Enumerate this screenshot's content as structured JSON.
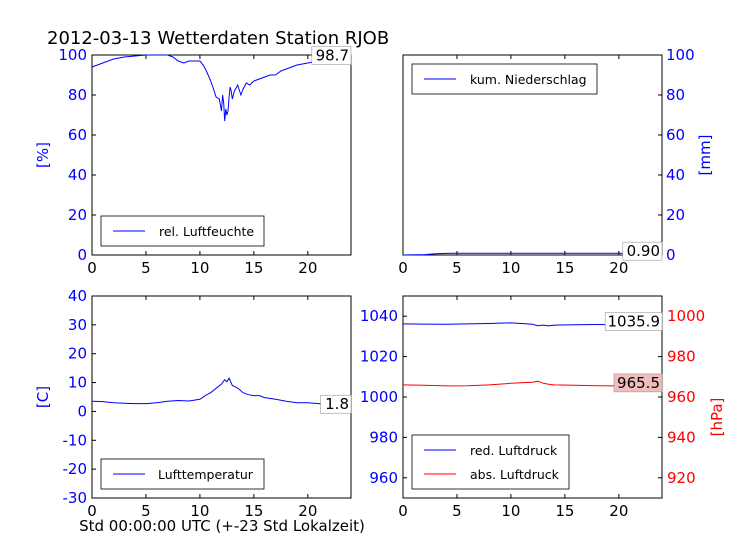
{
  "title": "2012-03-13 Wetterdaten Station RJOB",
  "xlabel": "Std 00:00:00 UTC (+-23 Std Lokalzeit)",
  "colors": {
    "blue": "#0000ff",
    "red": "#ff0000",
    "box_red": "#f2bcbc"
  },
  "chart_data": [
    {
      "type": "line",
      "panel": "humidity",
      "ylabel": "[%]",
      "ylim": [
        0,
        100
      ],
      "yticks": [
        0,
        20,
        40,
        60,
        80,
        100
      ],
      "xlim": [
        0,
        24
      ],
      "xticks": [
        0,
        5,
        10,
        15,
        20
      ],
      "legend": "rel. Luftfeuchte",
      "legend_position": "lower-left",
      "last_value_label": "98.7",
      "series": [
        {
          "name": "rel. Luftfeuchte",
          "color": "#0000ff",
          "x": [
            0,
            0.5,
            1,
            2,
            3,
            4,
            5,
            6,
            7,
            7.5,
            8,
            8.5,
            9,
            10,
            10.3,
            10.6,
            11,
            11.2,
            11.5,
            11.8,
            12,
            12.1,
            12.2,
            12.3,
            12.4,
            12.5,
            12.6,
            12.7,
            12.8,
            12.9,
            13,
            13.2,
            13.5,
            13.8,
            14,
            14.3,
            14.6,
            15,
            15.5,
            16,
            16.5,
            17,
            17.5,
            18,
            19,
            20,
            21,
            22,
            23,
            24
          ],
          "y": [
            94,
            95,
            96,
            98,
            99,
            99.5,
            100,
            100,
            100,
            99,
            97,
            96,
            97,
            97,
            95,
            92,
            87,
            84,
            79,
            78,
            72,
            80,
            76,
            67,
            73,
            70,
            72,
            79,
            84,
            82,
            78,
            82,
            85,
            80,
            83,
            86,
            85,
            87,
            88,
            89,
            90,
            90,
            92,
            93,
            95,
            96,
            97,
            98,
            98.5,
            98.7
          ]
        }
      ]
    },
    {
      "type": "line",
      "panel": "precipitation",
      "ylabel": "[mm]",
      "ylim": [
        0,
        100
      ],
      "yticks": [
        0,
        20,
        40,
        60,
        80,
        100
      ],
      "y_axis_side": "right",
      "xlim": [
        0,
        24
      ],
      "xticks": [
        0,
        5,
        10,
        15,
        20
      ],
      "legend": "kum. Niederschlag",
      "legend_position": "top-left",
      "last_value_label": "0.90",
      "series": [
        {
          "name": "kum. Niederschlag",
          "color": "#0000ff",
          "x": [
            0,
            2,
            3,
            4,
            5,
            8,
            12,
            16,
            20,
            24
          ],
          "y": [
            0,
            0.2,
            0.6,
            0.8,
            0.9,
            0.9,
            0.9,
            0.9,
            0.9,
            0.9
          ]
        }
      ]
    },
    {
      "type": "line",
      "panel": "temperature",
      "ylabel": "[C]",
      "ylim": [
        -30,
        40
      ],
      "yticks": [
        -30,
        -20,
        -10,
        0,
        10,
        20,
        30,
        40
      ],
      "xlim": [
        0,
        24
      ],
      "xticks": [
        0,
        5,
        10,
        15,
        20
      ],
      "legend": "Lufttemperatur",
      "legend_position": "lower-left",
      "last_value_label": "1.8",
      "series": [
        {
          "name": "Lufttemperatur",
          "color": "#0000ff",
          "x": [
            0,
            1,
            2,
            3,
            4,
            5,
            6,
            7,
            8,
            9,
            10,
            10.5,
            11,
            11.5,
            12,
            12.3,
            12.5,
            12.7,
            13,
            13.3,
            13.6,
            14,
            14.5,
            15,
            15.5,
            16,
            17,
            18,
            19,
            20,
            21,
            22,
            23,
            24
          ],
          "y": [
            3.5,
            3.4,
            3,
            2.8,
            2.7,
            2.7,
            3,
            3.5,
            3.8,
            3.6,
            4.2,
            5.5,
            6.5,
            8,
            9.5,
            11,
            10.3,
            11.5,
            9,
            8.5,
            7.8,
            6.5,
            5.8,
            5.5,
            5.5,
            4.8,
            4.2,
            3.5,
            3,
            3,
            2.7,
            2.3,
            2,
            1.8
          ]
        }
      ]
    },
    {
      "type": "line",
      "panel": "pressure",
      "ylabel": "[hPa]",
      "ylim": [
        950,
        1050
      ],
      "yticks": [
        960,
        980,
        1000,
        1020,
        1040
      ],
      "ylim_right": [
        910,
        1010
      ],
      "yticks_right": [
        920,
        940,
        960,
        980,
        1000
      ],
      "xlim": [
        0,
        24
      ],
      "xticks": [
        0,
        5,
        10,
        15,
        20
      ],
      "legend_position": "lower-left",
      "series": [
        {
          "name": "red. Luftdruck",
          "color": "#0000ff",
          "axis": "left",
          "last_value_label": "1035.9",
          "x": [
            0,
            2,
            4,
            6,
            8,
            9,
            10,
            11,
            12,
            12.5,
            13,
            13.5,
            14,
            16,
            18,
            20,
            22,
            24
          ],
          "y": [
            1036.2,
            1036.1,
            1036,
            1036.2,
            1036.4,
            1036.6,
            1036.7,
            1036.4,
            1036,
            1035.3,
            1035.6,
            1035.2,
            1035.6,
            1035.8,
            1035.9,
            1035.8,
            1035.9,
            1035.9
          ]
        },
        {
          "name": "abs. Luftdruck",
          "color": "#ff0000",
          "axis": "right",
          "last_value_label": "965.5",
          "x": [
            0,
            2,
            4,
            6,
            8,
            10,
            12,
            12.5,
            13,
            13.5,
            14,
            16,
            18,
            20,
            22,
            24
          ],
          "y": [
            966,
            965.8,
            965.5,
            965.6,
            966,
            966.8,
            967.3,
            967.8,
            966.8,
            966.3,
            966,
            965.8,
            965.6,
            965.5,
            965.5,
            965.5
          ]
        }
      ]
    }
  ]
}
